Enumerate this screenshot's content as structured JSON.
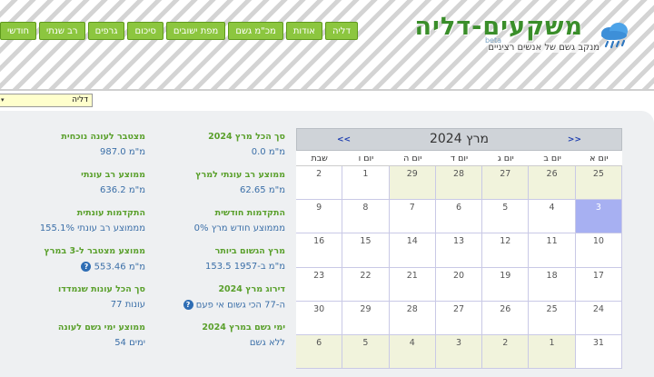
{
  "header": {
    "title": "משקעים-דליה",
    "beta": "beta",
    "subtitle": "מנקב גשם של אנשים רציניים",
    "nav": [
      "דליה",
      "אודות",
      "מכ\"מ גשם",
      "מפת ישובים",
      "סיכום",
      "גרפים",
      "רב שנתי",
      "חודשי"
    ]
  },
  "city_select": {
    "value": "דליה"
  },
  "stats_left": [
    {
      "label": "מצטבר לעונה נוכחית",
      "value": "987.0 מ\"מ"
    },
    {
      "label": "ממוצע רב עונתי",
      "value": "636.2 מ\"מ"
    },
    {
      "label": "התקדמות עונתית",
      "value": "155.1% מממוצע רב עונתי"
    },
    {
      "label": "ממוצע מצטבר ל-3 במרץ",
      "value": "553.46 מ\"מ"
    },
    {
      "label": "סך הכל עונות שנמדדו",
      "value": "77 עונות"
    },
    {
      "label": "ממוצע ימי גשם לעונה",
      "value": "54 ימים"
    }
  ],
  "stats_right": [
    {
      "label": "סך הכל מרץ 2024",
      "value": "0.0 מ\"מ"
    },
    {
      "label": "ממוצע רב עונתי למרץ",
      "value": "62.65 מ\"מ"
    },
    {
      "label": "התקדמות חודשית",
      "value": "0% מממוצע חודש מרץ"
    },
    {
      "label": "מרץ הגשום ביותר",
      "value": "153.5 מ\"מ ב-1957"
    },
    {
      "label": "דירוג מרץ 2024",
      "value": "ה-77 הכי גשום אי פעם"
    },
    {
      "label": "ימי גשם במרץ 2024",
      "value": "ללא גשם"
    }
  ],
  "calendar": {
    "title": "מרץ 2024",
    "prev": "<<",
    "next": ">>",
    "weekdays": [
      "יום א",
      "יום ב",
      "יום ג",
      "יום ד",
      "יום ה",
      "יום ו",
      "שבת"
    ],
    "weeks": [
      [
        {
          "d": "25",
          "o": true
        },
        {
          "d": "26",
          "o": true
        },
        {
          "d": "27",
          "o": true
        },
        {
          "d": "28",
          "o": true
        },
        {
          "d": "29",
          "o": true
        },
        {
          "d": "1",
          "o": false
        },
        {
          "d": "2",
          "o": false
        }
      ],
      [
        {
          "d": "3",
          "o": false,
          "t": true
        },
        {
          "d": "4",
          "o": false
        },
        {
          "d": "5",
          "o": false
        },
        {
          "d": "6",
          "o": false
        },
        {
          "d": "7",
          "o": false
        },
        {
          "d": "8",
          "o": false
        },
        {
          "d": "9",
          "o": false
        }
      ],
      [
        {
          "d": "10",
          "o": false
        },
        {
          "d": "11",
          "o": false
        },
        {
          "d": "12",
          "o": false
        },
        {
          "d": "13",
          "o": false
        },
        {
          "d": "14",
          "o": false
        },
        {
          "d": "15",
          "o": false
        },
        {
          "d": "16",
          "o": false
        }
      ],
      [
        {
          "d": "17",
          "o": false
        },
        {
          "d": "18",
          "o": false
        },
        {
          "d": "19",
          "o": false
        },
        {
          "d": "20",
          "o": false
        },
        {
          "d": "21",
          "o": false
        },
        {
          "d": "22",
          "o": false
        },
        {
          "d": "23",
          "o": false
        }
      ],
      [
        {
          "d": "24",
          "o": false
        },
        {
          "d": "25",
          "o": false
        },
        {
          "d": "26",
          "o": false
        },
        {
          "d": "27",
          "o": false
        },
        {
          "d": "28",
          "o": false
        },
        {
          "d": "29",
          "o": false
        },
        {
          "d": "30",
          "o": false
        }
      ],
      [
        {
          "d": "31",
          "o": false
        },
        {
          "d": "1",
          "o": true
        },
        {
          "d": "2",
          "o": true
        },
        {
          "d": "3",
          "o": true
        },
        {
          "d": "4",
          "o": true
        },
        {
          "d": "5",
          "o": true
        },
        {
          "d": "6",
          "o": true
        }
      ]
    ]
  },
  "colors": {
    "nav_green": "#8cc63f",
    "label_green": "#5aa02c",
    "value_blue": "#3b6fa8",
    "today": "#a7b0f2"
  }
}
